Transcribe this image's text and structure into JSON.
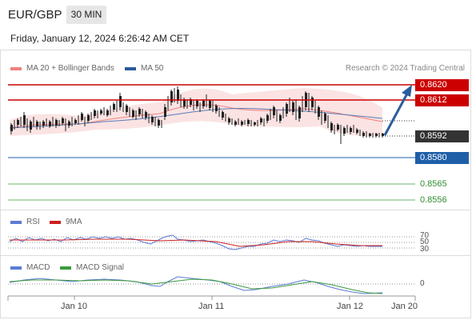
{
  "header": {
    "symbol": "EUR/GBP",
    "interval": "30 MIN"
  },
  "datetime": "Friday, January 12, 2024 6:26:42 AM CET",
  "legend": {
    "ma20": "MA 20 + Bollinger Bands",
    "ma50": "MA 50",
    "credit": "Research © 2024 Trading Central",
    "ma20_color": "#f08080",
    "ma50_color": "#2c5a9c"
  },
  "price_levels": {
    "resistance_1": "0.8620",
    "resistance_2": "0.8612",
    "current": "0.8592",
    "support_1": "0.8580",
    "target_1": "0.8565",
    "target_2": "0.8556"
  },
  "colors": {
    "resistance": "#cc0000",
    "support": "#1f5fa8",
    "target": "#2f8f2f",
    "current": "#333333",
    "arrow": "#2a5d9e"
  },
  "rsi": {
    "label": "RSI",
    "ma_label": "9MA",
    "levels": [
      "70",
      "50",
      "30"
    ]
  },
  "macd": {
    "label": "MACD",
    "signal_label": "MACD Signal",
    "zero": "0"
  },
  "dates": [
    "Jan 10",
    "Jan 11",
    "Jan 12",
    "Jan 20"
  ]
}
